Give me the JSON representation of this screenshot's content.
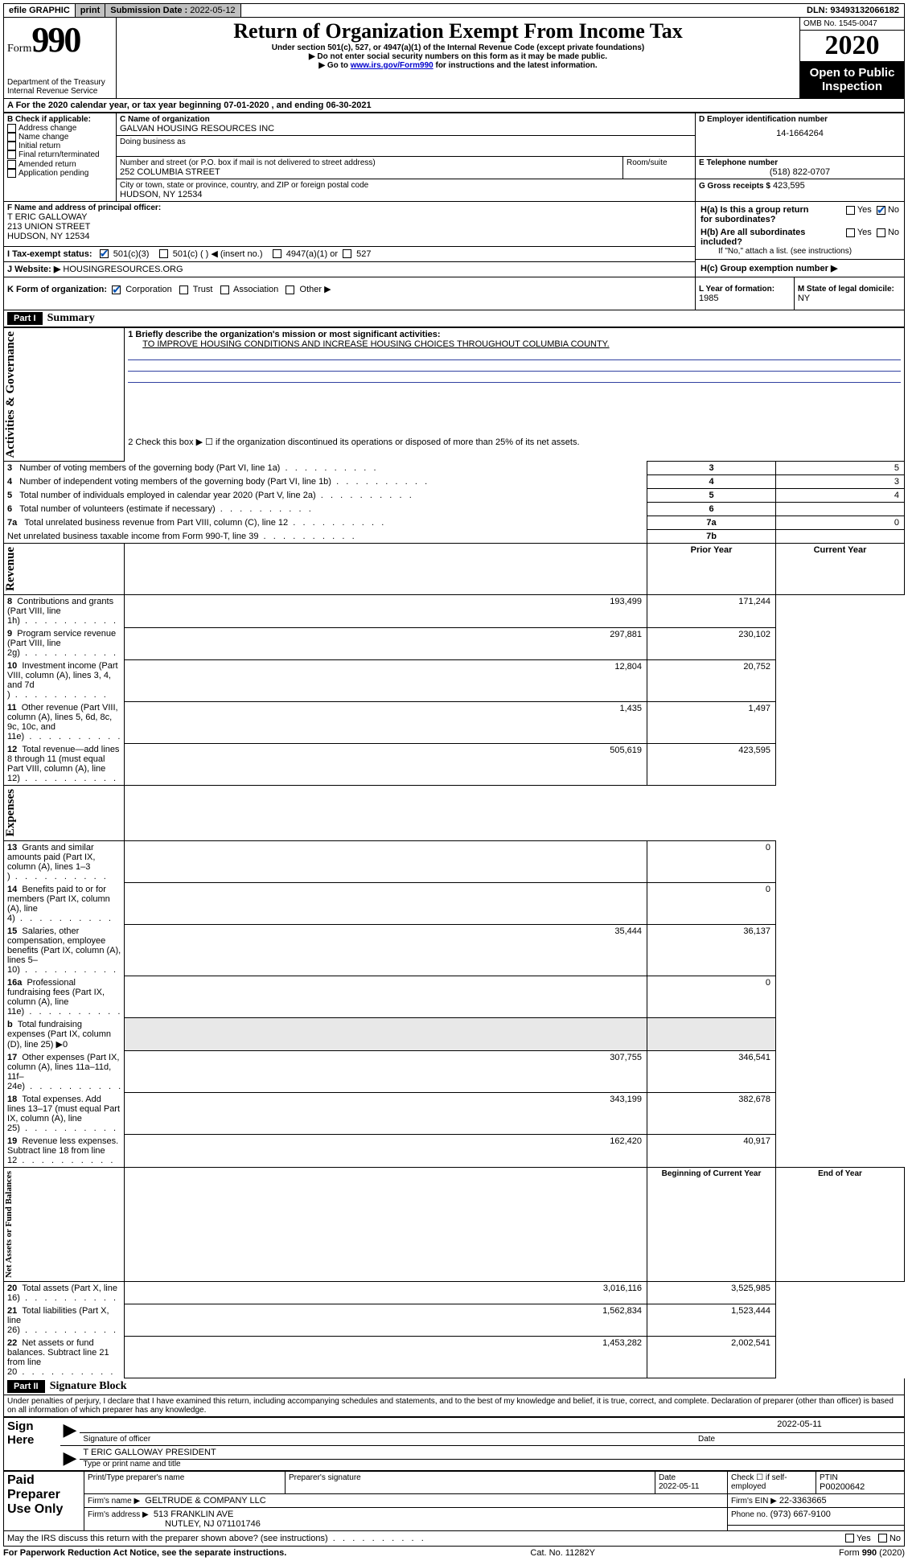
{
  "topbar": {
    "efile": "efile GRAPHIC",
    "print": "print",
    "sub_label": "Submission Date :",
    "sub_date": "2022-05-12",
    "dln_label": "DLN:",
    "dln": "93493132066182"
  },
  "header": {
    "form_word": "Form",
    "form_num": "990",
    "dept1": "Department of the Treasury",
    "dept2": "Internal Revenue Service",
    "title": "Return of Organization Exempt From Income Tax",
    "subtitle1": "Under section 501(c), 527, or 4947(a)(1) of the Internal Revenue Code (except private foundations)",
    "subtitle2": "▶ Do not enter social security numbers on this form as it may be made public.",
    "subtitle3a": "▶ Go to ",
    "subtitle3_link": "www.irs.gov/Form990",
    "subtitle3b": " for instructions and the latest information.",
    "omb_label": "OMB No. 1545-0047",
    "year": "2020",
    "open": "Open to Public Inspection"
  },
  "lineA": {
    "prefix": "A For the 2020 calendar year, or tax year beginning ",
    "begin": "07-01-2020",
    "mid": " , and ending ",
    "end": "06-30-2021"
  },
  "boxB": {
    "label": "B Check if applicable:",
    "opts": [
      "Address change",
      "Name change",
      "Initial return",
      "Final return/terminated",
      "Amended return",
      "Application pending"
    ]
  },
  "boxC": {
    "name_label": "C Name of organization",
    "name": "GALVAN HOUSING RESOURCES INC",
    "dba_label": "Doing business as",
    "addr_label": "Number and street (or P.O. box if mail is not delivered to street address)",
    "room_label": "Room/suite",
    "addr": "252 COLUMBIA STREET",
    "city_label": "City or town, state or province, country, and ZIP or foreign postal code",
    "city": "HUDSON, NY  12534"
  },
  "boxD": {
    "label": "D Employer identification number",
    "val": "14-1664264"
  },
  "boxE": {
    "label": "E Telephone number",
    "val": "(518) 822-0707"
  },
  "boxG": {
    "label": "G Gross receipts $",
    "val": "423,595"
  },
  "boxF": {
    "label": "F Name and address of principal officer:",
    "name": "T ERIC GALLOWAY",
    "addr": "213 UNION STREET",
    "city": "HUDSON, NY  12534"
  },
  "boxH": {
    "a": "H(a)  Is this a group return for subordinates?",
    "b": "H(b)  Are all subordinates included?",
    "bnote": "If \"No,\" attach a list. (see instructions)",
    "c": "H(c)  Group exemption number ▶",
    "yes": "Yes",
    "no": "No"
  },
  "boxI": {
    "label": "I  Tax-exempt status:",
    "o1": "501(c)(3)",
    "o2": "501(c) (   ) ◀ (insert no.)",
    "o3": "4947(a)(1) or",
    "o4": "527"
  },
  "boxJ": {
    "label": "J  Website: ▶",
    "val": " HOUSINGRESOURCES.ORG"
  },
  "boxK": {
    "label": "K Form of organization:",
    "corp": "Corporation",
    "trust": "Trust",
    "assoc": "Association",
    "other": "Other ▶"
  },
  "boxL": {
    "label": "L Year of formation:",
    "val": "1985"
  },
  "boxM": {
    "label": "M State of legal domicile:",
    "val": "NY"
  },
  "part1": {
    "head": "Part I",
    "title": "Summary",
    "l1": "1   Briefly describe the organization's mission or most significant activities:",
    "l1_val": "TO IMPROVE HOUSING CONDITIONS AND INCREASE HOUSING CHOICES THROUGHOUT COLUMBIA COUNTY.",
    "l2": "2   Check this box ▶ ☐  if the organization discontinued its operations or disposed of more than 25% of its net assets.",
    "gov_label": "Activities & Governance",
    "rows_gov": [
      {
        "n": "3",
        "t": "Number of voting members of the governing body (Part VI, line 1a)",
        "box": "3",
        "v": "5"
      },
      {
        "n": "4",
        "t": "Number of independent voting members of the governing body (Part VI, line 1b)",
        "box": "4",
        "v": "3"
      },
      {
        "n": "5",
        "t": "Total number of individuals employed in calendar year 2020 (Part V, line 2a)",
        "box": "5",
        "v": "4"
      },
      {
        "n": "6",
        "t": "Total number of volunteers (estimate if necessary)",
        "box": "6",
        "v": ""
      },
      {
        "n": "7a",
        "t": "Total unrelated business revenue from Part VIII, column (C), line 12",
        "box": "7a",
        "v": "0"
      },
      {
        "n": "",
        "t": "Net unrelated business taxable income from Form 990-T, line 39",
        "box": "7b",
        "v": ""
      }
    ],
    "rev_label": "Revenue",
    "py": "Prior Year",
    "cy": "Current Year",
    "rows_rev": [
      {
        "n": "8",
        "t": "Contributions and grants (Part VIII, line 1h)",
        "py": "193,499",
        "cy": "171,244"
      },
      {
        "n": "9",
        "t": "Program service revenue (Part VIII, line 2g)",
        "py": "297,881",
        "cy": "230,102"
      },
      {
        "n": "10",
        "t": "Investment income (Part VIII, column (A), lines 3, 4, and 7d )",
        "py": "12,804",
        "cy": "20,752"
      },
      {
        "n": "11",
        "t": "Other revenue (Part VIII, column (A), lines 5, 6d, 8c, 9c, 10c, and 11e)",
        "py": "1,435",
        "cy": "1,497"
      },
      {
        "n": "12",
        "t": "Total revenue—add lines 8 through 11 (must equal Part VIII, column (A), line 12)",
        "py": "505,619",
        "cy": "423,595"
      }
    ],
    "exp_label": "Expenses",
    "rows_exp": [
      {
        "n": "13",
        "t": "Grants and similar amounts paid (Part IX, column (A), lines 1–3 )",
        "py": "",
        "cy": "0"
      },
      {
        "n": "14",
        "t": "Benefits paid to or for members (Part IX, column (A), line 4)",
        "py": "",
        "cy": "0"
      },
      {
        "n": "15",
        "t": "Salaries, other compensation, employee benefits (Part IX, column (A), lines 5–10)",
        "py": "35,444",
        "cy": "36,137"
      },
      {
        "n": "16a",
        "t": "Professional fundraising fees (Part IX, column (A), line 11e)",
        "py": "",
        "cy": "0"
      },
      {
        "n": "b",
        "t": "Total fundraising expenses (Part IX, column (D), line 25) ▶0",
        "py": "__GRAY__",
        "cy": "__GRAY__"
      },
      {
        "n": "17",
        "t": "Other expenses (Part IX, column (A), lines 11a–11d, 11f–24e)",
        "py": "307,755",
        "cy": "346,541"
      },
      {
        "n": "18",
        "t": "Total expenses. Add lines 13–17 (must equal Part IX, column (A), line 25)",
        "py": "343,199",
        "cy": "382,678"
      },
      {
        "n": "19",
        "t": "Revenue less expenses. Subtract line 18 from line 12",
        "py": "162,420",
        "cy": "40,917"
      }
    ],
    "na_label": "Net Assets or Fund Balances",
    "bcy": "Beginning of Current Year",
    "eoy": "End of Year",
    "rows_na": [
      {
        "n": "20",
        "t": "Total assets (Part X, line 16)",
        "py": "3,016,116",
        "cy": "3,525,985"
      },
      {
        "n": "21",
        "t": "Total liabilities (Part X, line 26)",
        "py": "1,562,834",
        "cy": "1,523,444"
      },
      {
        "n": "22",
        "t": "Net assets or fund balances. Subtract line 21 from line 20",
        "py": "1,453,282",
        "cy": "2,002,541"
      }
    ]
  },
  "part2": {
    "head": "Part II",
    "title": "Signature Block",
    "decl": "Under penalties of perjury, I declare that I have examined this return, including accompanying schedules and statements, and to the best of my knowledge and belief, it is true, correct, and complete. Declaration of preparer (other than officer) is based on all information of which preparer has any knowledge.",
    "sign_here": "Sign Here",
    "sig_of_officer": "Signature of officer",
    "sig_date": "2022-05-11",
    "date_lbl": "Date",
    "officer_name": "T ERIC GALLOWAY  PRESIDENT",
    "type_lbl": "Type or print name and title",
    "paid": "Paid Preparer Use Only",
    "pp_name_lbl": "Print/Type preparer's name",
    "pp_sig_lbl": "Preparer's signature",
    "pp_date_lbl": "Date",
    "pp_date": "2022-05-11",
    "pp_check_lbl": "Check ☐ if self-employed",
    "ptin_lbl": "PTIN",
    "ptin": "P00200642",
    "firm_name_lbl": "Firm's name     ▶",
    "firm_name": "GELTRUDE & COMPANY LLC",
    "firm_ein_lbl": "Firm's EIN ▶",
    "firm_ein": "22-3363665",
    "firm_addr_lbl": "Firm's address ▶",
    "firm_addr1": "513 FRANKLIN AVE",
    "firm_addr2": "NUTLEY, NJ  071101746",
    "firm_phone_lbl": "Phone no.",
    "firm_phone": "(973) 667-9100",
    "discuss": "May the IRS discuss this return with the preparer shown above? (see instructions)",
    "yes": "Yes",
    "no": "No"
  },
  "footer": {
    "left": "For Paperwork Reduction Act Notice, see the separate instructions.",
    "mid": "Cat. No. 11282Y",
    "right": "Form 990 (2020)"
  }
}
